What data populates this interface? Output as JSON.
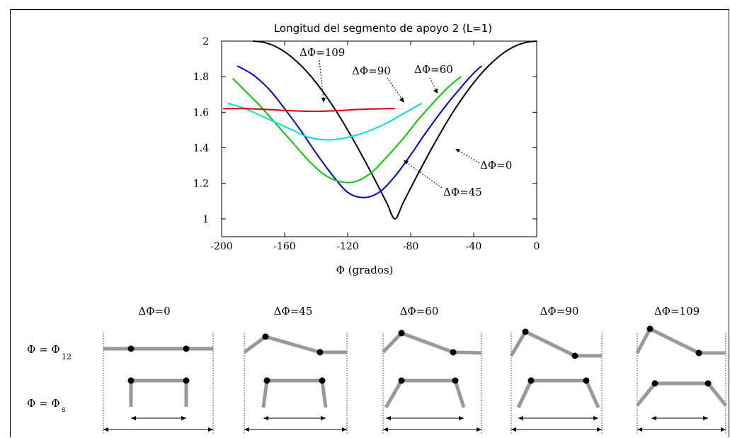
{
  "chart_data": {
    "type": "line",
    "title": "Longitud del segmento de apoyo 2 (L=1)",
    "xlabel": "Φ (grados)",
    "ylabel": "",
    "xlim": [
      -200,
      0
    ],
    "ylim": [
      0.9,
      2.0
    ],
    "x_ticks": [
      "-200",
      "-160",
      "-120",
      "-80",
      "-40",
      "0"
    ],
    "y_ticks": [
      "1",
      "1.2",
      "1.4",
      "1.6",
      "1.8",
      "2"
    ],
    "grid": false,
    "series": [
      {
        "name": "ΔΦ=0",
        "color": "#000000",
        "x": [
          -180,
          -175,
          -170,
          -165,
          -160,
          -155,
          -150,
          -145,
          -140,
          -135,
          -130,
          -125,
          -120,
          -115,
          -110,
          -105,
          -100,
          -95,
          -90,
          -85,
          -80,
          -75,
          -70,
          -65,
          -60,
          -55,
          -50,
          -45,
          -40,
          -35,
          -30,
          -25,
          -20,
          -15,
          -10,
          -5,
          0
        ],
        "y": [
          2.0,
          1.996,
          1.985,
          1.966,
          1.94,
          1.906,
          1.866,
          1.819,
          1.766,
          1.707,
          1.643,
          1.574,
          1.5,
          1.423,
          1.342,
          1.259,
          1.174,
          1.087,
          1.0,
          1.087,
          1.174,
          1.259,
          1.342,
          1.423,
          1.5,
          1.574,
          1.643,
          1.707,
          1.766,
          1.819,
          1.866,
          1.906,
          1.94,
          1.966,
          1.985,
          1.996,
          2.0
        ]
      },
      {
        "name": "ΔΦ=45",
        "color": "#0000cc",
        "x": [
          -190,
          -180,
          -170,
          -160,
          -150,
          -140,
          -130,
          -120,
          -110,
          -100,
          -90,
          -80,
          -70,
          -60,
          -50,
          -40,
          -35
        ],
        "y": [
          1.86,
          1.81,
          1.73,
          1.62,
          1.5,
          1.37,
          1.25,
          1.15,
          1.12,
          1.15,
          1.24,
          1.36,
          1.49,
          1.61,
          1.72,
          1.82,
          1.86
        ]
      },
      {
        "name": "ΔΦ=60",
        "color": "#00cc00",
        "x": [
          -193,
          -185,
          -175,
          -165,
          -155,
          -145,
          -135,
          -125,
          -115,
          -105,
          -95,
          -85,
          -75,
          -65,
          -55,
          -48
        ],
        "y": [
          1.79,
          1.72,
          1.63,
          1.53,
          1.43,
          1.33,
          1.25,
          1.21,
          1.21,
          1.26,
          1.35,
          1.45,
          1.56,
          1.66,
          1.75,
          1.8
        ]
      },
      {
        "name": "ΔΦ=90",
        "color": "#00dddd",
        "x": [
          -196,
          -185,
          -175,
          -165,
          -155,
          -145,
          -135,
          -125,
          -115,
          -105,
          -95,
          -85,
          -75,
          -73
        ],
        "y": [
          1.65,
          1.62,
          1.58,
          1.54,
          1.5,
          1.46,
          1.445,
          1.45,
          1.47,
          1.5,
          1.54,
          1.59,
          1.64,
          1.65
        ]
      },
      {
        "name": "ΔΦ=109",
        "color": "#dd0000",
        "x": [
          -199,
          -185,
          -170,
          -155,
          -140,
          -125,
          -110,
          -95,
          -90
        ],
        "y": [
          1.62,
          1.62,
          1.615,
          1.608,
          1.605,
          1.61,
          1.617,
          1.62,
          1.62
        ]
      }
    ],
    "annotations": [
      "ΔΦ=0",
      "ΔΦ=45",
      "ΔΦ=60",
      "ΔΦ=90",
      "ΔΦ=109"
    ]
  },
  "diagrams": {
    "row_labels": {
      "phi12": {
        "main": "Φ = Φ",
        "sub": "12"
      },
      "phis": {
        "main": "Φ = Φ",
        "sub": "s"
      }
    },
    "panels": [
      {
        "label": "ΔΦ=0"
      },
      {
        "label": "ΔΦ=45"
      },
      {
        "label": "ΔΦ=60"
      },
      {
        "label": "ΔΦ=90"
      },
      {
        "label": "ΔΦ=109"
      }
    ],
    "link_color": "#999999"
  }
}
